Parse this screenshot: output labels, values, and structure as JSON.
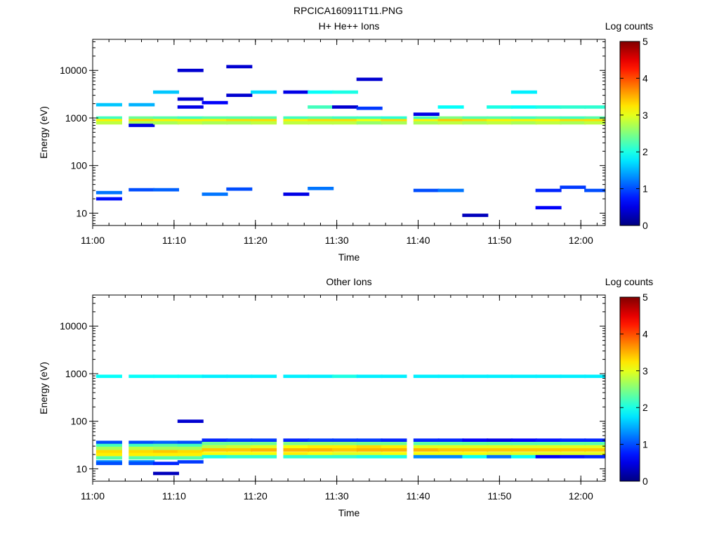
{
  "figure": {
    "title": "RPCICA160911T11.PNG"
  },
  "chart_data": [
    {
      "type": "heatmap",
      "title": "H+ He++ Ions",
      "xlabel": "Time",
      "ylabel": "Energy (eV)",
      "xlim": [
        "11:00",
        "12:03"
      ],
      "x_ticks": [
        "11:00",
        "11:10",
        "11:20",
        "11:30",
        "11:40",
        "11:50",
        "12:00"
      ],
      "y_scale": "log",
      "ylim": [
        5.5,
        45000
      ],
      "y_ticks": [
        "10",
        "100",
        "1000",
        "10000"
      ],
      "colorbar": {
        "label": "Log counts",
        "range": [
          0,
          5
        ],
        "ticks": [
          "0",
          "1",
          "2",
          "3",
          "4",
          "5"
        ]
      },
      "bins": [
        {
          "t": "11:02",
          "e": [
            1900,
            1000,
            880,
            790,
            27,
            20
          ],
          "c": [
            1.6,
            2.2,
            3.2,
            2.8,
            1.2,
            0.7
          ]
        },
        {
          "t": "11:06",
          "e": [
            1900,
            1000,
            880,
            790,
            700,
            31
          ],
          "c": [
            1.5,
            2.4,
            3.3,
            2.7,
            0.5,
            1.0
          ]
        },
        {
          "t": "11:09",
          "e": [
            3500,
            1000,
            880,
            790,
            31
          ],
          "c": [
            1.6,
            2.3,
            3.2,
            2.7,
            1.1
          ]
        },
        {
          "t": "11:12",
          "e": [
            2500,
            1700,
            1000,
            880,
            790,
            10000
          ],
          "c": [
            0.4,
            0.5,
            2.2,
            3.2,
            2.8,
            0.4
          ]
        },
        {
          "t": "11:15",
          "e": [
            2100,
            1000,
            880,
            790,
            25
          ],
          "c": [
            0.6,
            2.3,
            3.2,
            2.7,
            1.2
          ]
        },
        {
          "t": "11:18",
          "e": [
            3000,
            1000,
            880,
            790,
            32,
            12000
          ],
          "c": [
            0.4,
            2.3,
            3.3,
            2.7,
            1.0,
            0.4
          ]
        },
        {
          "t": "11:21",
          "e": [
            3500,
            1000,
            880,
            790
          ],
          "c": [
            1.7,
            2.3,
            3.3,
            2.8
          ]
        },
        {
          "t": "11:25",
          "e": [
            3500,
            1000,
            880,
            790,
            25
          ],
          "c": [
            0.5,
            2.2,
            3.2,
            2.8,
            0.5
          ]
        },
        {
          "t": "11:28",
          "e": [
            3500,
            1700,
            1000,
            880,
            790,
            33
          ],
          "c": [
            1.9,
            2.2,
            2.3,
            3.3,
            2.8,
            1.2
          ]
        },
        {
          "t": "11:31",
          "e": [
            3500,
            1700,
            1000,
            880,
            790
          ],
          "c": [
            2.0,
            0.4,
            2.2,
            3.3,
            2.8
          ]
        },
        {
          "t": "11:34",
          "e": [
            1600,
            1000,
            880,
            790,
            6500
          ],
          "c": [
            0.9,
            2.2,
            3.1,
            2.6,
            0.4
          ]
        },
        {
          "t": "11:37",
          "e": [
            1000,
            880,
            790
          ],
          "c": [
            2.1,
            3.3,
            2.7
          ]
        },
        {
          "t": "11:41",
          "e": [
            1200,
            1000,
            880,
            790,
            30
          ],
          "c": [
            0.5,
            2.2,
            3.2,
            2.7,
            1.0
          ]
        },
        {
          "t": "11:44",
          "e": [
            1700,
            1000,
            880,
            790,
            30
          ],
          "c": [
            1.9,
            2.5,
            3.4,
            2.8,
            1.2
          ]
        },
        {
          "t": "11:47",
          "e": [
            1000,
            880,
            790,
            9
          ],
          "c": [
            2.3,
            3.3,
            2.7,
            0.3
          ]
        },
        {
          "t": "11:50",
          "e": [
            1700,
            1000,
            880,
            790
          ],
          "c": [
            2.0,
            2.3,
            3.2,
            2.8
          ]
        },
        {
          "t": "11:53",
          "e": [
            3500,
            1700,
            1000,
            880,
            790
          ],
          "c": [
            1.8,
            1.9,
            2.2,
            3.2,
            2.7
          ]
        },
        {
          "t": "11:56",
          "e": [
            1700,
            1000,
            880,
            790,
            30,
            13
          ],
          "c": [
            2.0,
            2.3,
            3.2,
            2.8,
            0.8,
            0.6
          ]
        },
        {
          "t": "11:59",
          "e": [
            1700,
            1000,
            880,
            790,
            35
          ],
          "c": [
            2.1,
            2.2,
            3.3,
            2.7,
            0.9
          ]
        },
        {
          "t": "12:02",
          "e": [
            1700,
            1000,
            880,
            790,
            30
          ],
          "c": [
            2.1,
            2.3,
            3.3,
            2.8,
            1.0
          ]
        }
      ]
    },
    {
      "type": "heatmap",
      "title": "Other Ions",
      "xlabel": "Time",
      "ylabel": "Energy (eV)",
      "xlim": [
        "11:00",
        "12:03"
      ],
      "x_ticks": [
        "11:00",
        "11:10",
        "11:20",
        "11:30",
        "11:40",
        "11:50",
        "12:00"
      ],
      "y_scale": "log",
      "ylim": [
        5.5,
        45000
      ],
      "y_ticks": [
        "10",
        "100",
        "1000",
        "10000"
      ],
      "colorbar": {
        "label": "Log counts",
        "range": [
          0,
          5
        ],
        "ticks": [
          "0",
          "1",
          "2",
          "3",
          "4",
          "5"
        ]
      },
      "bins": [
        {
          "t": "11:02",
          "e": [
            880,
            36,
            31,
            27,
            23,
            20,
            17,
            14,
            13
          ],
          "c": [
            1.9,
            1.0,
            2.2,
            2.7,
            3.3,
            3.2,
            2.3,
            1.3,
            1.0
          ]
        },
        {
          "t": "11:06",
          "e": [
            880,
            36,
            31,
            27,
            23,
            20,
            17,
            14,
            13
          ],
          "c": [
            1.9,
            1.0,
            2.2,
            2.8,
            3.3,
            3.2,
            2.3,
            1.3,
            1.0
          ]
        },
        {
          "t": "11:09",
          "e": [
            880,
            36,
            31,
            27,
            23,
            20,
            17,
            13,
            8
          ],
          "c": [
            1.9,
            1.1,
            2.3,
            2.7,
            3.4,
            3.2,
            2.3,
            0.8,
            0.3
          ]
        },
        {
          "t": "11:12",
          "e": [
            880,
            36,
            31,
            27,
            23,
            20,
            17,
            14,
            100
          ],
          "c": [
            1.9,
            1.0,
            2.2,
            2.7,
            3.3,
            3.2,
            2.3,
            0.9,
            0.4
          ]
        },
        {
          "t": "11:15",
          "e": [
            880,
            40,
            34,
            29,
            25,
            21,
            18
          ],
          "c": [
            1.8,
            0.8,
            2.4,
            2.8,
            3.4,
            3.1,
            2.0
          ]
        },
        {
          "t": "11:18",
          "e": [
            880,
            40,
            34,
            29,
            25,
            21,
            18
          ],
          "c": [
            1.8,
            0.9,
            2.4,
            2.9,
            3.4,
            3.1,
            2.1
          ]
        },
        {
          "t": "11:21",
          "e": [
            880,
            40,
            34,
            29,
            25,
            21,
            18
          ],
          "c": [
            1.8,
            0.9,
            2.4,
            3.0,
            3.5,
            3.1,
            2.1
          ]
        },
        {
          "t": "11:25",
          "e": [
            880,
            40,
            34,
            29,
            25,
            21,
            18
          ],
          "c": [
            1.8,
            0.8,
            2.5,
            3.1,
            3.5,
            3.2,
            2.1
          ]
        },
        {
          "t": "11:28",
          "e": [
            880,
            40,
            34,
            29,
            25,
            21,
            18
          ],
          "c": [
            1.8,
            0.9,
            2.5,
            3.2,
            3.5,
            3.1,
            2.1
          ]
        },
        {
          "t": "11:31",
          "e": [
            880,
            40,
            34,
            29,
            25,
            21,
            18
          ],
          "c": [
            2.0,
            0.9,
            2.5,
            3.2,
            3.4,
            3.0,
            2.1
          ]
        },
        {
          "t": "11:34",
          "e": [
            880,
            40,
            34,
            29,
            25,
            21,
            18
          ],
          "c": [
            1.8,
            0.9,
            2.4,
            3.3,
            3.5,
            3.0,
            2.0
          ]
        },
        {
          "t": "11:37",
          "e": [
            880,
            40,
            34,
            29,
            25,
            21,
            18
          ],
          "c": [
            1.8,
            0.8,
            2.4,
            3.2,
            3.5,
            3.1,
            2.0
          ]
        },
        {
          "t": "11:41",
          "e": [
            880,
            40,
            34,
            29,
            25,
            21,
            18
          ],
          "c": [
            1.8,
            0.8,
            2.3,
            3.0,
            3.5,
            3.1,
            1.3
          ]
        },
        {
          "t": "11:44",
          "e": [
            880,
            40,
            34,
            29,
            25,
            21,
            18
          ],
          "c": [
            1.8,
            0.8,
            2.3,
            3.0,
            3.4,
            3.1,
            1.3
          ]
        },
        {
          "t": "11:47",
          "e": [
            880,
            40,
            34,
            29,
            25,
            21,
            18
          ],
          "c": [
            1.8,
            0.6,
            2.3,
            3.0,
            3.4,
            3.1,
            1.9
          ]
        },
        {
          "t": "11:50",
          "e": [
            880,
            40,
            34,
            29,
            25,
            21,
            18
          ],
          "c": [
            1.8,
            0.5,
            2.3,
            3.0,
            3.4,
            3.0,
            1.2
          ]
        },
        {
          "t": "11:53",
          "e": [
            880,
            40,
            34,
            29,
            25,
            21,
            18
          ],
          "c": [
            1.8,
            0.6,
            2.3,
            3.0,
            3.4,
            3.0,
            1.9
          ]
        },
        {
          "t": "11:56",
          "e": [
            880,
            40,
            34,
            29,
            25,
            21,
            18
          ],
          "c": [
            1.8,
            0.7,
            2.3,
            3.0,
            3.4,
            3.0,
            0.6
          ]
        },
        {
          "t": "11:59",
          "e": [
            880,
            40,
            34,
            29,
            25,
            21,
            18
          ],
          "c": [
            1.8,
            0.8,
            2.3,
            3.0,
            3.4,
            3.0,
            0.7
          ]
        },
        {
          "t": "12:02",
          "e": [
            880,
            40,
            34,
            29,
            25,
            21,
            18
          ],
          "c": [
            1.8,
            0.8,
            2.3,
            3.0,
            3.4,
            3.0,
            0.8
          ]
        }
      ]
    }
  ]
}
